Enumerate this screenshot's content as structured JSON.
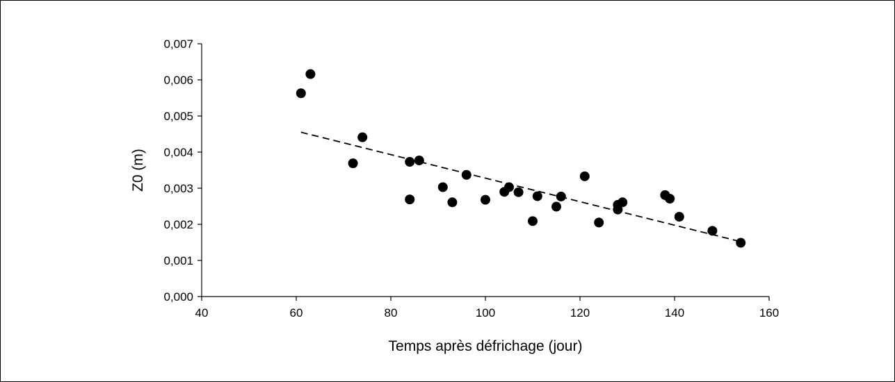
{
  "chart_data": {
    "type": "scatter",
    "title": "",
    "xlabel": "Temps après défrichage (jour)",
    "ylabel": "Z0 (m)",
    "xlim": [
      40,
      160
    ],
    "ylim": [
      0,
      0.007
    ],
    "x_ticks": [
      40,
      60,
      80,
      100,
      120,
      140,
      160
    ],
    "x_tick_labels": [
      "40",
      "60",
      "80",
      "100",
      "120",
      "140",
      "160"
    ],
    "y_ticks": [
      0,
      0.001,
      0.002,
      0.003,
      0.004,
      0.005,
      0.006,
      0.007
    ],
    "y_tick_labels": [
      "0,000",
      "0,001",
      "0,002",
      "0,003",
      "0,004",
      "0,005",
      "0,006",
      "0,007"
    ],
    "grid": false,
    "legend": "none",
    "series": [
      {
        "marker": "circle",
        "color": "#000000",
        "points": [
          {
            "x": 61,
            "y": 0.00563
          },
          {
            "x": 63,
            "y": 0.00616
          },
          {
            "x": 72,
            "y": 0.00369
          },
          {
            "x": 74,
            "y": 0.00441
          },
          {
            "x": 84,
            "y": 0.00373
          },
          {
            "x": 84,
            "y": 0.00269
          },
          {
            "x": 86,
            "y": 0.00377
          },
          {
            "x": 91,
            "y": 0.00303
          },
          {
            "x": 93,
            "y": 0.00261
          },
          {
            "x": 96,
            "y": 0.00337
          },
          {
            "x": 100,
            "y": 0.00268
          },
          {
            "x": 104,
            "y": 0.0029
          },
          {
            "x": 105,
            "y": 0.00303
          },
          {
            "x": 107,
            "y": 0.00289
          },
          {
            "x": 110,
            "y": 0.00209
          },
          {
            "x": 111,
            "y": 0.00278
          },
          {
            "x": 115,
            "y": 0.00249
          },
          {
            "x": 116,
            "y": 0.00277
          },
          {
            "x": 121,
            "y": 0.00333
          },
          {
            "x": 124,
            "y": 0.00205
          },
          {
            "x": 128,
            "y": 0.00241
          },
          {
            "x": 128,
            "y": 0.00254
          },
          {
            "x": 129,
            "y": 0.00261
          },
          {
            "x": 138,
            "y": 0.00281
          },
          {
            "x": 139,
            "y": 0.00271
          },
          {
            "x": 141,
            "y": 0.00221
          },
          {
            "x": 148,
            "y": 0.00182
          },
          {
            "x": 154,
            "y": 0.00149
          }
        ]
      }
    ],
    "trendline": {
      "type": "linear",
      "style": "dashed",
      "color": "#000000",
      "x_start": 61,
      "y_start": 0.00455,
      "x_end": 154,
      "y_end": 0.00152
    }
  }
}
